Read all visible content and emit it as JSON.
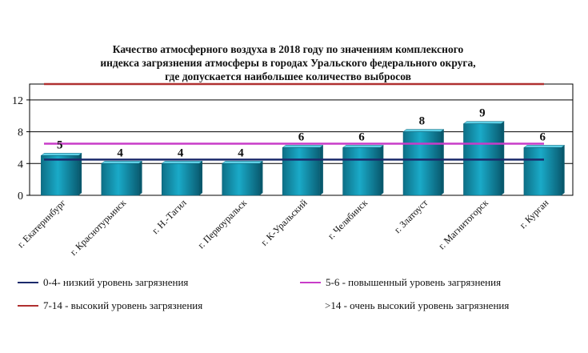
{
  "chart_data": {
    "type": "bar",
    "title_lines": [
      "Качество атмосферного воздуха в 2018 году по значениям комплексного",
      "индекса загрязнения атмосферы в городах Уральского федерального округа,",
      "где допускается наибольшее количество выбросов"
    ],
    "categories": [
      "г. Екатеринбург",
      "г. Краснотурьинск",
      "г. Н.-Тагил",
      "г. Первоуральск",
      "г. К-Уральский",
      "г. Челябинск",
      "г. Златоуст",
      "г. Магнитогорск",
      "г. Курган"
    ],
    "values": [
      5,
      4,
      4,
      4,
      6,
      6,
      8,
      9,
      6
    ],
    "data_labels": [
      "5",
      "4",
      "4",
      "4",
      "6",
      "6",
      "8",
      "9",
      "6"
    ],
    "ylim": [
      0,
      14
    ],
    "yticks": [
      0,
      4,
      8,
      12
    ],
    "grid": true,
    "bar_color": "#1aaac8",
    "reference_lines": [
      {
        "value": 4.5,
        "color": "#1b2a6b"
      },
      {
        "value": 6.5,
        "color": "#c83cc8"
      },
      {
        "value": 14,
        "color": "#b03030"
      }
    ],
    "legend": [
      {
        "label": "0-4- низкий уровень загрязнения",
        "color": "#1b2a6b"
      },
      {
        "label": "5-6 - повышенный уровень загрязнения",
        "color": "#c83cc8"
      },
      {
        "label": "7-14 - высокий уровень загрязнения",
        "color": "#b03030"
      },
      {
        "label": ">14 - очень высокий уровень загрязнения",
        "color": ""
      }
    ]
  }
}
